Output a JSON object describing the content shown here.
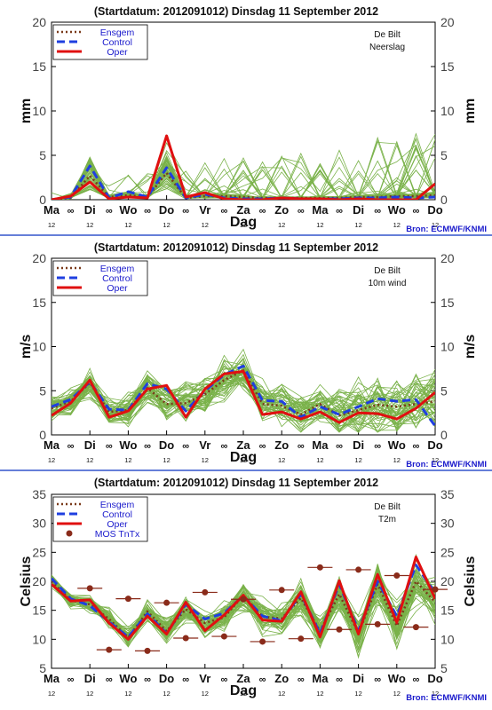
{
  "source_label": "Bron: ECMWF/KNMI",
  "colors": {
    "background": "#ffffff",
    "members": "#7ab24a",
    "ensgem": "#7a3a1a",
    "control": "#1f3fe0",
    "oper": "#e01010",
    "mos": "#8a2b1a",
    "separator": "#3355cc",
    "source_text": "#1a1acc",
    "legend_text": "#1a1acc"
  },
  "day_ticks": [
    {
      "label": "Ma",
      "sub": "12"
    },
    {
      "label": "Di",
      "sub": "12"
    },
    {
      "label": "Wo",
      "sub": "12"
    },
    {
      "label": "Do",
      "sub": "12"
    },
    {
      "label": "Vr",
      "sub": "12"
    },
    {
      "label": "Za",
      "sub": "12"
    },
    {
      "label": "Zo",
      "sub": "12"
    },
    {
      "label": "Ma",
      "sub": "12"
    },
    {
      "label": "Di",
      "sub": "12"
    },
    {
      "label": "Wo",
      "sub": "12"
    },
    {
      "label": "Do",
      "sub": "12"
    }
  ],
  "chart_data": [
    {
      "type": "line",
      "title": "(Startdatum: 2012091012)   Dinsdag   11 September 2012",
      "station": "De Bilt",
      "variable": "Neerslag",
      "xlabel": "Dag",
      "ylabel_left": "mm",
      "ylabel_right": "mm",
      "ylim": [
        0,
        20
      ],
      "yticks": [
        0,
        5,
        10,
        15,
        20
      ],
      "legend": [
        "Ensgem",
        "Control",
        "Oper"
      ],
      "x_days": [
        0,
        0.5,
        1,
        1.5,
        2,
        2.5,
        3,
        3.5,
        4,
        4.5,
        5,
        5.5,
        6,
        6.5,
        7,
        7.5,
        8,
        8.5,
        9,
        9.5,
        10
      ],
      "series": [
        {
          "name": "Ensgem",
          "style": "dotted",
          "values": [
            0,
            0.2,
            2.7,
            0.3,
            0.5,
            0.3,
            3.0,
            0.2,
            0.4,
            0.4,
            0.3,
            0.2,
            0.2,
            0.2,
            0.2,
            0.2,
            0.3,
            0.3,
            0.4,
            0.4,
            0.5
          ]
        },
        {
          "name": "Control",
          "style": "dashed",
          "values": [
            0,
            0.3,
            3.8,
            0.2,
            0.9,
            0.3,
            3.6,
            0.2,
            0.6,
            0.2,
            0.1,
            0.1,
            0.2,
            0.1,
            0.1,
            0.1,
            0.2,
            0.2,
            0.3,
            0.2,
            0.3
          ]
        },
        {
          "name": "Oper",
          "style": "solid",
          "values": [
            0,
            0.4,
            2.0,
            0.1,
            0.3,
            0.2,
            7.2,
            0.3,
            0.8,
            0.1,
            0.0,
            0.0,
            0.2,
            0.1,
            0.1,
            0.0,
            0.1,
            0.0,
            0.0,
            0.0,
            1.8
          ]
        }
      ]
    },
    {
      "type": "line",
      "title": "(Startdatum: 2012091012)   Dinsdag   11 September 2012",
      "station": "De Bilt",
      "variable": "10m wind",
      "xlabel": "Dag",
      "ylabel_left": "m/s",
      "ylabel_right": "m/s",
      "ylim": [
        0,
        20
      ],
      "yticks": [
        0,
        5,
        10,
        15,
        20
      ],
      "legend": [
        "Ensgem",
        "Control",
        "Oper"
      ],
      "x_days": [
        0,
        0.5,
        1,
        1.5,
        2,
        2.5,
        3,
        3.5,
        4,
        4.5,
        5,
        5.5,
        6,
        6.5,
        7,
        7.5,
        8,
        8.5,
        9,
        9.5,
        10
      ],
      "series": [
        {
          "name": "Ensgem",
          "style": "dotted",
          "values": [
            3.0,
            3.8,
            5.9,
            2.6,
            2.8,
            5.3,
            3.5,
            3.6,
            4.6,
            6.2,
            7.3,
            3.5,
            3.3,
            2.3,
            3.5,
            2.2,
            2.8,
            3.4,
            3.2,
            3.5,
            3.8
          ]
        },
        {
          "name": "Control",
          "style": "dashed",
          "values": [
            3.2,
            4.0,
            6.0,
            2.9,
            2.8,
            5.8,
            5.2,
            2.7,
            5.0,
            6.8,
            7.8,
            3.9,
            3.8,
            2.0,
            3.2,
            2.3,
            3.2,
            4.1,
            3.8,
            4.0,
            1.0
          ]
        },
        {
          "name": "Oper",
          "style": "solid",
          "values": [
            2.2,
            3.6,
            6.2,
            2.0,
            2.7,
            5.2,
            5.6,
            2.0,
            5.2,
            6.9,
            7.2,
            2.3,
            2.6,
            1.8,
            2.6,
            1.4,
            2.5,
            2.4,
            1.8,
            3.0,
            4.8
          ]
        }
      ]
    },
    {
      "type": "line",
      "title": "(Startdatum: 2012091012)   Dinsdag   11 September 2012",
      "station": "De Bilt",
      "variable": "T2m",
      "xlabel": "Dag",
      "ylabel_left": "Celsius",
      "ylabel_right": "Celsius",
      "ylim": [
        5,
        35
      ],
      "yticks": [
        5,
        10,
        15,
        20,
        25,
        30,
        35
      ],
      "legend": [
        "Ensgem",
        "Control",
        "Oper",
        "MOS TnTx"
      ],
      "x_days": [
        0,
        0.5,
        1,
        1.5,
        2,
        2.5,
        3,
        3.5,
        4,
        4.5,
        5,
        5.5,
        6,
        6.5,
        7,
        7.5,
        8,
        8.5,
        9,
        9.5,
        10
      ],
      "series": [
        {
          "name": "Ensgem",
          "style": "dotted",
          "values": [
            20.0,
            16.8,
            16.0,
            13.5,
            10.3,
            14.8,
            11.4,
            15.2,
            12.8,
            13.8,
            17.6,
            13.9,
            13.6,
            17.1,
            11.4,
            17.8,
            11.0,
            19.5,
            12.3,
            20.0,
            16.4
          ]
        },
        {
          "name": "Control",
          "style": "dashed",
          "values": [
            20.5,
            17.0,
            15.8,
            13.0,
            10.4,
            14.4,
            11.0,
            16.0,
            13.5,
            14.5,
            17.5,
            14.0,
            13.2,
            17.8,
            11.0,
            19.5,
            11.5,
            20.0,
            14.0,
            22.8,
            18.0
          ]
        },
        {
          "name": "Oper",
          "style": "solid",
          "values": [
            19.5,
            16.6,
            16.8,
            12.8,
            10.0,
            14.0,
            10.9,
            16.4,
            11.5,
            14.2,
            17.6,
            13.3,
            13.1,
            18.2,
            10.4,
            20.1,
            10.9,
            21.2,
            12.9,
            24.2,
            17.0
          ]
        }
      ],
      "mos_tntx": [
        {
          "x": 1.0,
          "y": 18.8
        },
        {
          "x": 1.5,
          "y": 8.2
        },
        {
          "x": 2.0,
          "y": 17.0
        },
        {
          "x": 2.5,
          "y": 8.0
        },
        {
          "x": 3.0,
          "y": 16.3
        },
        {
          "x": 3.5,
          "y": 10.2
        },
        {
          "x": 4.0,
          "y": 18.1
        },
        {
          "x": 4.5,
          "y": 10.5
        },
        {
          "x": 5.0,
          "y": 16.9
        },
        {
          "x": 5.5,
          "y": 9.6
        },
        {
          "x": 6.0,
          "y": 18.5
        },
        {
          "x": 6.5,
          "y": 10.1
        },
        {
          "x": 7.0,
          "y": 22.4
        },
        {
          "x": 7.5,
          "y": 11.7
        },
        {
          "x": 8.0,
          "y": 22.0
        },
        {
          "x": 8.5,
          "y": 12.6
        },
        {
          "x": 9.0,
          "y": 21.0
        },
        {
          "x": 9.5,
          "y": 12.1
        },
        {
          "x": 10.0,
          "y": 18.6
        }
      ]
    }
  ]
}
